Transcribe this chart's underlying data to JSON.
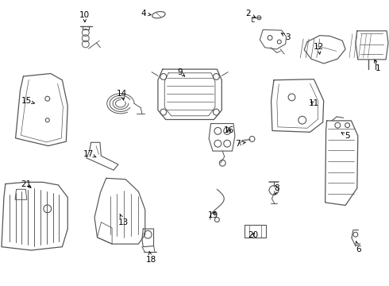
{
  "figsize": [
    4.9,
    3.6
  ],
  "dpi": 100,
  "background_color": "#ffffff",
  "line_color": "#555555",
  "text_color": "#000000",
  "label_fontsize": 7.5,
  "labels": [
    [
      1,
      0.972,
      0.76,
      0.96,
      0.8
    ],
    [
      2,
      0.638,
      0.952,
      0.658,
      0.938
    ],
    [
      3,
      0.74,
      0.87,
      0.722,
      0.885
    ],
    [
      4,
      0.368,
      0.952,
      0.39,
      0.948
    ],
    [
      5,
      0.892,
      0.525,
      0.876,
      0.538
    ],
    [
      6,
      0.922,
      0.128,
      0.915,
      0.158
    ],
    [
      7,
      0.612,
      0.498,
      0.638,
      0.504
    ],
    [
      8,
      0.712,
      0.342,
      0.706,
      0.318
    ],
    [
      9,
      0.462,
      0.748,
      0.476,
      0.732
    ],
    [
      10,
      0.218,
      0.948,
      0.218,
      0.92
    ],
    [
      11,
      0.808,
      0.638,
      0.792,
      0.648
    ],
    [
      12,
      0.82,
      0.835,
      0.822,
      0.808
    ],
    [
      13,
      0.318,
      0.222,
      0.308,
      0.252
    ],
    [
      14,
      0.314,
      0.672,
      0.318,
      0.648
    ],
    [
      15,
      0.068,
      0.648,
      0.09,
      0.638
    ],
    [
      16,
      0.588,
      0.545,
      0.578,
      0.535
    ],
    [
      17,
      0.228,
      0.462,
      0.248,
      0.45
    ],
    [
      18,
      0.388,
      0.092,
      0.384,
      0.122
    ],
    [
      19,
      0.548,
      0.248,
      0.558,
      0.268
    ],
    [
      20,
      0.65,
      0.178,
      0.658,
      0.192
    ],
    [
      21,
      0.068,
      0.355,
      0.086,
      0.338
    ]
  ]
}
